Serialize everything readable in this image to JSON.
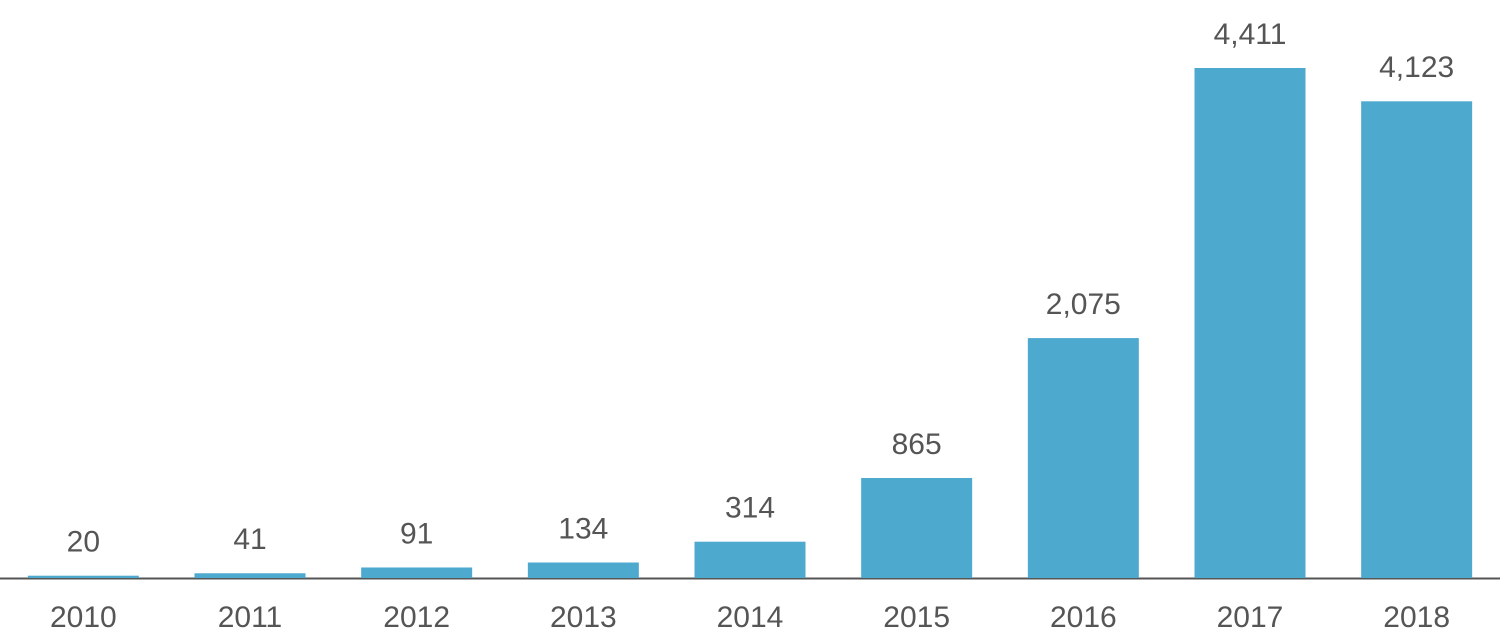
{
  "chart_data": {
    "type": "bar",
    "categories": [
      "2010",
      "2011",
      "2012",
      "2013",
      "2014",
      "2015",
      "2016",
      "2017",
      "2018"
    ],
    "values": [
      20,
      41,
      91,
      134,
      314,
      865,
      2075,
      4411,
      4123
    ],
    "value_labels": [
      "20",
      "41",
      "91",
      "134",
      "314",
      "865",
      "2,075",
      "4,411",
      "4,123"
    ],
    "color": "#4ea9cf"
  }
}
